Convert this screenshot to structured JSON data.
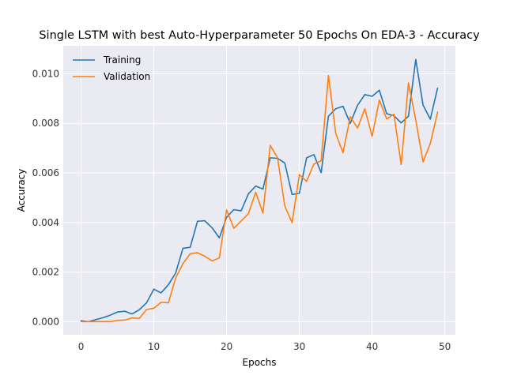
{
  "chart_data": {
    "type": "line",
    "title": "Single LSTM with best Auto-Hyperparameter 50 Epochs On EDA-3 - Accuracy",
    "xlabel": "Epochs",
    "ylabel": "Accuracy",
    "xlim": [
      -2.45,
      51.45
    ],
    "ylim": [
      -0.00053,
      0.01113
    ],
    "xticks": [
      0,
      10,
      20,
      30,
      40,
      50
    ],
    "xtick_labels": [
      "0",
      "10",
      "20",
      "30",
      "40",
      "50"
    ],
    "yticks": [
      0.0,
      0.002,
      0.004,
      0.006,
      0.008,
      0.01
    ],
    "ytick_labels": [
      "0.000",
      "0.002",
      "0.004",
      "0.006",
      "0.008",
      "0.010"
    ],
    "grid": true,
    "legend_position": "top-left",
    "x": [
      0,
      1,
      2,
      3,
      4,
      5,
      6,
      7,
      8,
      9,
      10,
      11,
      12,
      13,
      14,
      15,
      16,
      17,
      18,
      19,
      20,
      21,
      22,
      23,
      24,
      25,
      26,
      27,
      28,
      29,
      30,
      31,
      32,
      33,
      34,
      35,
      36,
      37,
      38,
      39,
      40,
      41,
      42,
      43,
      44,
      45,
      46,
      47,
      48,
      49
    ],
    "series": [
      {
        "name": "Training",
        "color": "#1f77b4",
        "values": [
          4e-05,
          0.0,
          8e-05,
          0.00016,
          0.00026,
          0.00039,
          0.00042,
          0.00031,
          0.00048,
          0.00076,
          0.00131,
          0.00116,
          0.00149,
          0.00196,
          0.00296,
          0.003,
          0.00405,
          0.00407,
          0.00379,
          0.00338,
          0.00421,
          0.00452,
          0.00447,
          0.00516,
          0.00547,
          0.00535,
          0.00661,
          0.00659,
          0.0064,
          0.00513,
          0.00518,
          0.00661,
          0.00674,
          0.00601,
          0.00829,
          0.00859,
          0.00869,
          0.008,
          0.00873,
          0.00916,
          0.00909,
          0.00934,
          0.00839,
          0.00831,
          0.00802,
          0.00829,
          0.01058,
          0.00874,
          0.00817,
          0.00942
        ]
      },
      {
        "name": "Validation",
        "color": "#ff7f0e",
        "values": [
          0.0,
          0.0,
          0.0,
          0.0,
          0.0,
          5e-05,
          6e-05,
          0.00015,
          0.00013,
          0.00049,
          0.00054,
          0.00078,
          0.00076,
          0.00176,
          0.00234,
          0.00274,
          0.00278,
          0.00264,
          0.00245,
          0.00257,
          0.00451,
          0.00377,
          0.00406,
          0.00436,
          0.00522,
          0.00438,
          0.00711,
          0.00662,
          0.00467,
          0.00399,
          0.00593,
          0.00566,
          0.00636,
          0.00649,
          0.00993,
          0.0076,
          0.00682,
          0.00827,
          0.00781,
          0.00859,
          0.00748,
          0.00894,
          0.00818,
          0.00837,
          0.00634,
          0.00963,
          0.00814,
          0.00645,
          0.00719,
          0.00845
        ]
      }
    ]
  }
}
